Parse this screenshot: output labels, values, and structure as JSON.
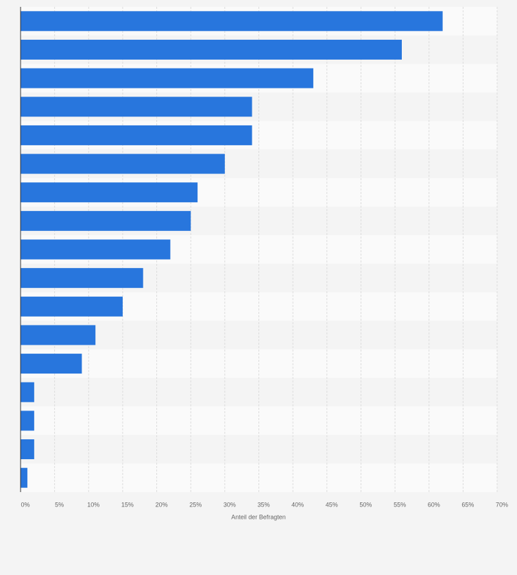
{
  "chart_data": {
    "type": "bar",
    "orientation": "horizontal",
    "x_label": "Anteil der Befragten",
    "categories": [
      null,
      null,
      null,
      null,
      null,
      null,
      null,
      null,
      null,
      null,
      null,
      null,
      null,
      null,
      null,
      null,
      null
    ],
    "values": [
      62,
      56,
      43,
      34,
      34,
      30,
      26,
      25,
      22,
      18,
      15,
      11,
      9,
      2,
      2,
      2,
      1
    ],
    "color": "#2876dd",
    "xlim": [
      0,
      70
    ],
    "xticks": [
      {
        "value": 0,
        "label": "0%"
      },
      {
        "value": 5,
        "label": "5%"
      },
      {
        "value": 10,
        "label": "10%"
      },
      {
        "value": 15,
        "label": "15%"
      },
      {
        "value": 20,
        "label": "20%"
      },
      {
        "value": 25,
        "label": "25%"
      },
      {
        "value": 30,
        "label": "30%"
      },
      {
        "value": 35,
        "label": "35%"
      },
      {
        "value": 40,
        "label": "40%"
      },
      {
        "value": 45,
        "label": "45%"
      },
      {
        "value": 50,
        "label": "50%"
      },
      {
        "value": 55,
        "label": "55%"
      },
      {
        "value": 60,
        "label": "60%"
      },
      {
        "value": 65,
        "label": "65%"
      },
      {
        "value": 70,
        "label": "70%"
      }
    ],
    "grid": true
  }
}
